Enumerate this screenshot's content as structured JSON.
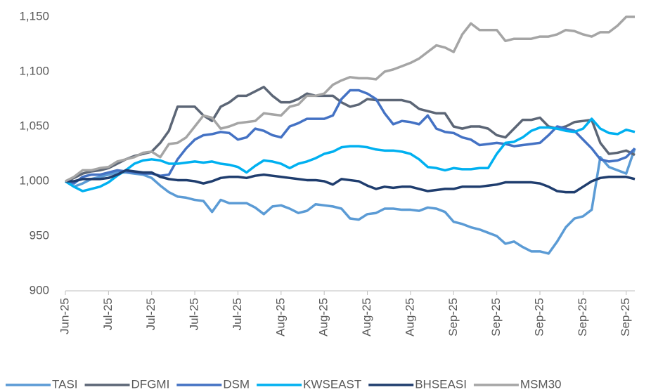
{
  "chart_data": {
    "type": "line",
    "categories": [
      "Jun-25",
      null,
      null,
      null,
      null,
      "Jul-25",
      null,
      null,
      null,
      null,
      "Jul-25",
      null,
      null,
      null,
      null,
      "Jul-25",
      null,
      null,
      null,
      null,
      "Jul-25",
      null,
      null,
      null,
      null,
      "Aug-25",
      null,
      null,
      null,
      null,
      "Aug-25",
      null,
      null,
      null,
      null,
      "Aug-25",
      null,
      null,
      null,
      null,
      "Aug-25",
      null,
      null,
      null,
      null,
      "Sep-25",
      null,
      null,
      null,
      null,
      "Sep-25",
      null,
      null,
      null,
      null,
      "Sep-25",
      null,
      null,
      null,
      null,
      "Sep-25",
      null,
      null,
      null,
      null,
      "Sep-25",
      null
    ],
    "series": [
      {
        "name": "TASI",
        "color": "#5b9bd5",
        "values": [
          1000,
          995,
          998,
          1002,
          1004,
          1006,
          1008,
          1008,
          1007,
          1006,
          1003,
          996,
          990,
          986,
          985,
          983,
          982,
          972,
          983,
          980,
          980,
          980,
          976,
          970,
          977,
          978,
          975,
          971,
          973,
          979,
          978,
          977,
          975,
          966,
          965,
          970,
          971,
          975,
          975,
          974,
          974,
          973,
          976,
          975,
          972,
          963,
          961,
          958,
          956,
          953,
          950,
          943,
          945,
          940,
          936,
          936,
          934,
          945,
          958,
          966,
          968,
          974,
          1022,
          1013,
          1010,
          1007,
          1030
        ]
      },
      {
        "name": "DFGMI",
        "color": "#5c6676",
        "values": [
          1000,
          1003,
          1007,
          1009,
          1010,
          1012,
          1016,
          1020,
          1023,
          1025,
          1027,
          1035,
          1046,
          1068,
          1068,
          1068,
          1060,
          1055,
          1068,
          1072,
          1078,
          1078,
          1082,
          1086,
          1078,
          1072,
          1072,
          1075,
          1080,
          1078,
          1078,
          1078,
          1072,
          1068,
          1070,
          1075,
          1074,
          1074,
          1074,
          1074,
          1072,
          1066,
          1064,
          1062,
          1062,
          1050,
          1048,
          1050,
          1050,
          1048,
          1042,
          1040,
          1048,
          1056,
          1056,
          1058,
          1050,
          1048,
          1050,
          1054,
          1055,
          1056,
          1035,
          1025,
          1026,
          1028,
          1024
        ]
      },
      {
        "name": "DSM",
        "color": "#4472c4",
        "values": [
          1000,
          998,
          1004,
          1006,
          1006,
          1008,
          1010,
          1009,
          1008,
          1007,
          1007,
          1005,
          1006,
          1020,
          1030,
          1038,
          1042,
          1043,
          1045,
          1044,
          1038,
          1040,
          1048,
          1046,
          1042,
          1040,
          1050,
          1053,
          1057,
          1057,
          1057,
          1060,
          1075,
          1083,
          1083,
          1080,
          1075,
          1062,
          1052,
          1055,
          1054,
          1052,
          1060,
          1048,
          1045,
          1044,
          1040,
          1038,
          1033,
          1034,
          1035,
          1034,
          1032,
          1033,
          1034,
          1035,
          1042,
          1050,
          1048,
          1046,
          1038,
          1030,
          1020,
          1018,
          1019,
          1022,
          1030
        ]
      },
      {
        "name": "KWSEAST",
        "color": "#00b0f0",
        "values": [
          1000,
          995,
          991,
          993,
          995,
          999,
          1005,
          1010,
          1016,
          1019,
          1020,
          1019,
          1016,
          1016,
          1017,
          1018,
          1017,
          1018,
          1016,
          1015,
          1013,
          1008,
          1014,
          1019,
          1018,
          1016,
          1012,
          1016,
          1018,
          1021,
          1025,
          1027,
          1031,
          1032,
          1032,
          1031,
          1029,
          1028,
          1028,
          1027,
          1025,
          1020,
          1013,
          1012,
          1010,
          1012,
          1011,
          1011,
          1012,
          1012,
          1025,
          1035,
          1036,
          1040,
          1046,
          1049,
          1049,
          1048,
          1046,
          1045,
          1048,
          1057,
          1048,
          1044,
          1043,
          1047,
          1045
        ]
      },
      {
        "name": "BHSEASI",
        "color": "#1f3d6e",
        "values": [
          1000,
          1000,
          1002,
          1002,
          1002,
          1003,
          1006,
          1010,
          1009,
          1008,
          1008,
          1004,
          1002,
          1001,
          1001,
          1000,
          998,
          1000,
          1003,
          1004,
          1004,
          1003,
          1005,
          1006,
          1005,
          1004,
          1003,
          1002,
          1001,
          1001,
          1000,
          997,
          1002,
          1001,
          1000,
          996,
          993,
          995,
          994,
          995,
          995,
          993,
          991,
          992,
          993,
          993,
          995,
          995,
          995,
          996,
          997,
          999,
          999,
          999,
          999,
          998,
          995,
          991,
          990,
          990,
          995,
          1000,
          1003,
          1004,
          1004,
          1004,
          1002
        ]
      },
      {
        "name": "MSM30",
        "color": "#a5a5a5",
        "values": [
          1000,
          1004,
          1010,
          1010,
          1012,
          1013,
          1018,
          1020,
          1022,
          1026,
          1027,
          1022,
          1034,
          1035,
          1040,
          1050,
          1060,
          1058,
          1048,
          1050,
          1053,
          1054,
          1055,
          1062,
          1061,
          1060,
          1068,
          1070,
          1078,
          1078,
          1080,
          1088,
          1092,
          1095,
          1094,
          1094,
          1093,
          1100,
          1102,
          1105,
          1108,
          1112,
          1118,
          1124,
          1122,
          1118,
          1134,
          1144,
          1138,
          1138,
          1138,
          1128,
          1130,
          1130,
          1130,
          1132,
          1132,
          1134,
          1138,
          1137,
          1134,
          1132,
          1136,
          1136,
          1142,
          1150,
          1150
        ]
      }
    ],
    "ylim": [
      900,
      1150
    ],
    "yticks": [
      900,
      950,
      {
        "value": 1000,
        "label": "1,000"
      },
      {
        "value": 1050,
        "label": "1,050"
      },
      {
        "value": 1100,
        "label": "1,100"
      },
      {
        "value": 1150,
        "label": "1,150"
      }
    ],
    "grid": false,
    "legend": "bottom"
  }
}
